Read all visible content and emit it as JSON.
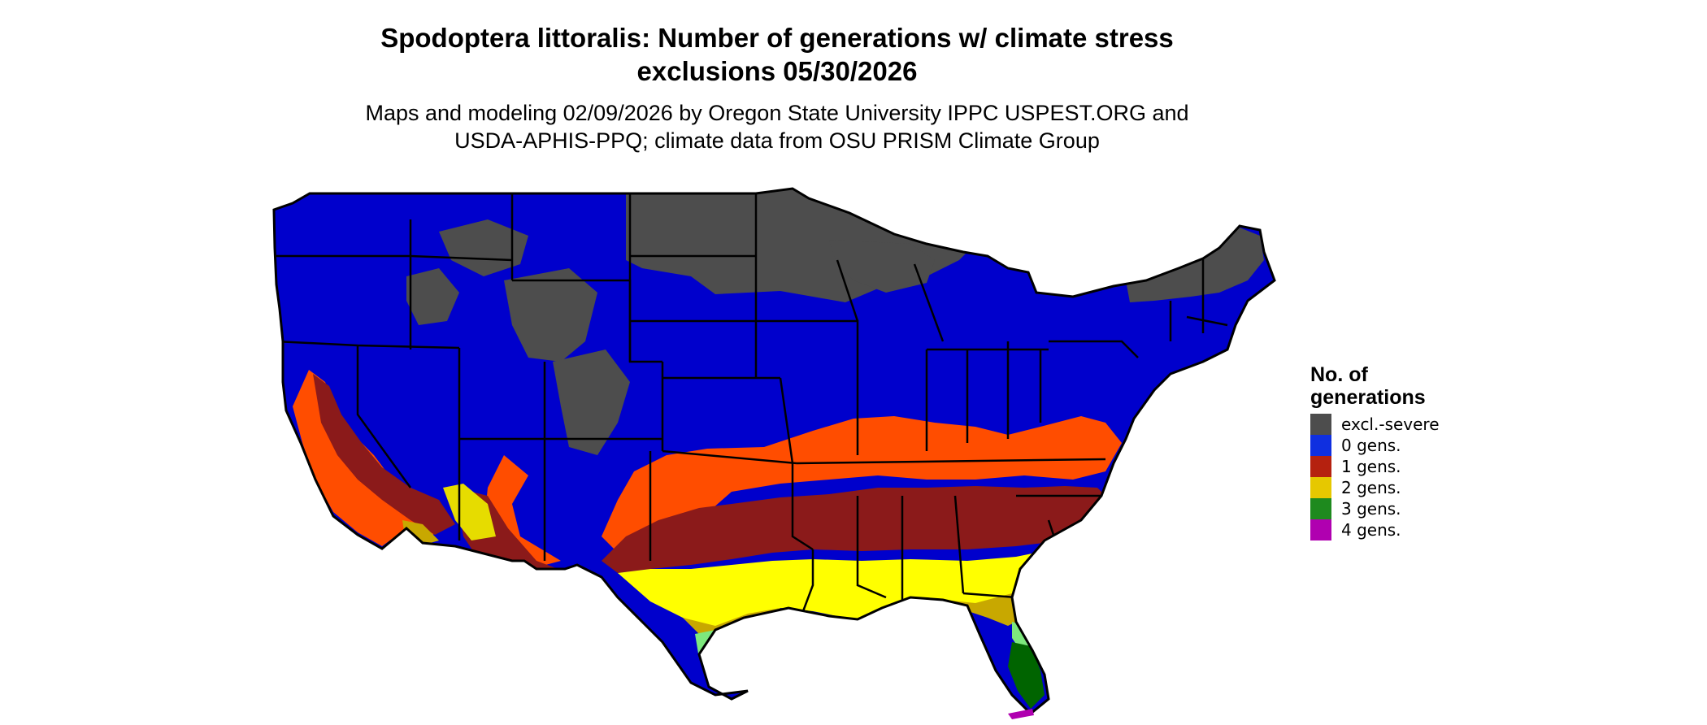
{
  "header": {
    "title_line1": "Spodoptera littoralis: Number of generations w/ climate stress",
    "title_line2": "exclusions 05/30/2026",
    "subtitle_line1": "Maps and modeling 02/09/2026 by Oregon State University IPPC USPEST.ORG and",
    "subtitle_line2": "USDA-APHIS-PPQ; climate data from OSU PRISM Climate Group"
  },
  "legend": {
    "title_line1": "No. of",
    "title_line2": "generations",
    "items": [
      {
        "label": "excl.-severe",
        "color": "#4d4d4d"
      },
      {
        "label": "0 gens.",
        "color": "#0f2fe0"
      },
      {
        "label": "1 gens.",
        "color": "#b5210f"
      },
      {
        "label": "2 gens.",
        "color": "#e6c800"
      },
      {
        "label": "3 gens.",
        "color": "#1e8a1e"
      },
      {
        "label": "4 gens.",
        "color": "#b000b0"
      }
    ]
  },
  "map": {
    "region": "contiguous United States",
    "fill_colors": {
      "excl_severe": "#4d4d4d",
      "zero_gens": "#0000cc",
      "one_gen_light": "#ff4d00",
      "one_gen_dark": "#8b1a1a",
      "two_gens_light": "#ffff00",
      "two_gens_dark": "#c8a800",
      "three_gens_light": "#7de87d",
      "three_gens_dark": "#006400",
      "four_gens": "#b000b0",
      "state_borders": "#000000"
    }
  }
}
